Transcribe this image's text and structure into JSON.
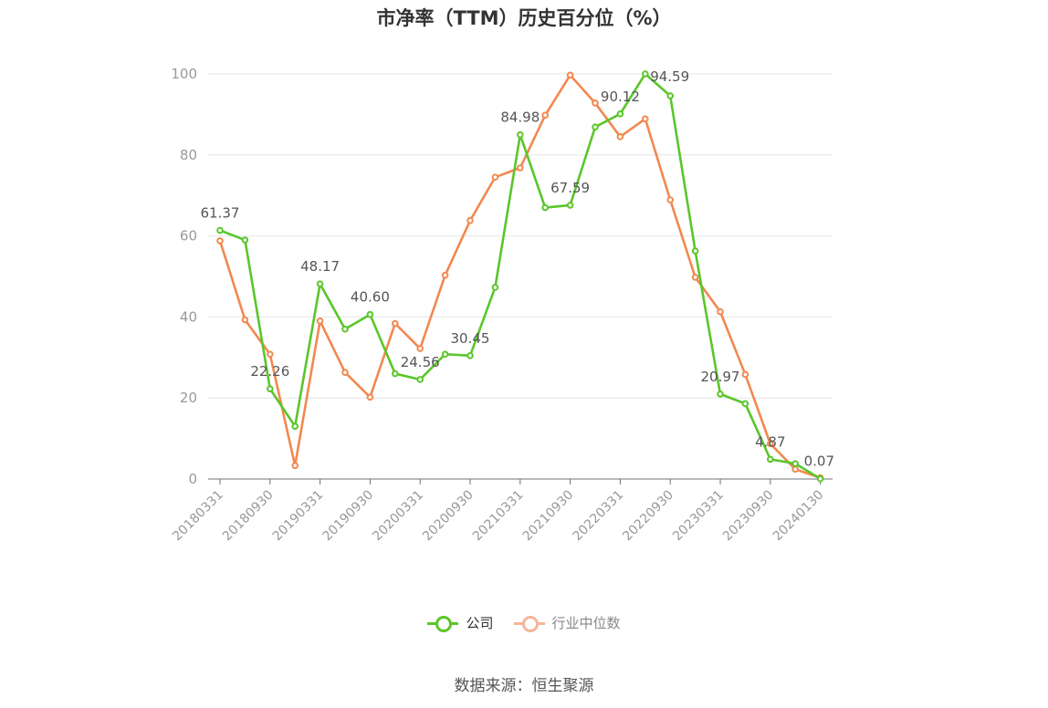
{
  "chart_data": {
    "type": "line",
    "title": "市净率（TTM）历史百分位（%）",
    "ylim": [
      0,
      100
    ],
    "y_ticks": [
      0,
      20,
      40,
      60,
      80,
      100
    ],
    "grid": true,
    "legend_position": "bottom",
    "x_tick_labels": [
      "20180331",
      "20180930",
      "20190331",
      "20190930",
      "20200331",
      "20200930",
      "20210331",
      "20210930",
      "20220331",
      "20220930",
      "20230331",
      "20230930",
      "20240130"
    ],
    "x": [
      "20180331",
      "20180630",
      "20180930",
      "20181231",
      "20190331",
      "20190630",
      "20190930",
      "20191231",
      "20200331",
      "20200630",
      "20200930",
      "20201231",
      "20210331",
      "20210630",
      "20210930",
      "20211231",
      "20220331",
      "20220630",
      "20220930",
      "20221231",
      "20230331",
      "20230630",
      "20230930",
      "20231231",
      "20240130"
    ],
    "series": [
      {
        "name": "公司",
        "color": "#5ac62a",
        "values": [
          61.37,
          59.0,
          22.26,
          13.0,
          48.17,
          37.0,
          40.6,
          26.0,
          24.56,
          30.8,
          30.45,
          47.3,
          84.98,
          67.0,
          67.59,
          86.9,
          90.12,
          100.0,
          94.59,
          56.3,
          20.97,
          18.6,
          4.87,
          3.8,
          0.07
        ],
        "labels": [
          "61.37",
          "",
          "22.26",
          "",
          "48.17",
          "",
          "40.60",
          "",
          "24.56",
          "",
          "30.45",
          "",
          "84.98",
          "",
          "67.59",
          "",
          "90.12",
          "",
          "94.59",
          "",
          "20.97",
          "",
          "4.87",
          "",
          "0.07"
        ]
      },
      {
        "name": "行业中位数",
        "color": "#f2884f",
        "values": [
          58.8,
          39.3,
          30.8,
          3.3,
          39.0,
          26.3,
          20.2,
          38.4,
          32.2,
          50.3,
          63.8,
          74.5,
          76.8,
          89.8,
          99.7,
          92.8,
          84.5,
          88.9,
          68.9,
          49.8,
          41.3,
          25.8,
          8.7,
          2.4,
          0.3
        ],
        "labels": []
      }
    ],
    "legend_marker_colors": [
      "#5ac62a",
      "#f5b59a"
    ]
  },
  "source_text": "数据来源：恒生聚源"
}
